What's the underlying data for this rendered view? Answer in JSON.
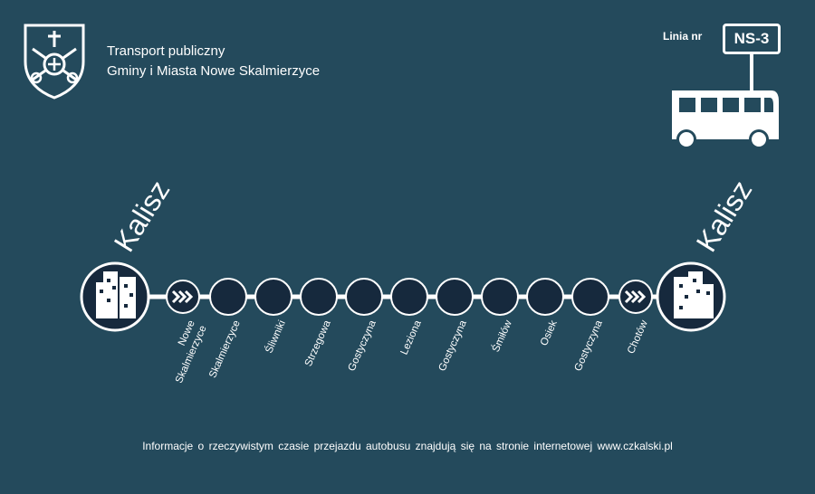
{
  "header": {
    "line1": "Transport publiczny",
    "line2": "Gminy i Miasta Nowe Skalmierzyce",
    "crest_icon": "coat-of-arms-icon"
  },
  "line": {
    "label": "Linia nr",
    "number": "NS-3",
    "bus_icon": "bus-icon"
  },
  "route": {
    "start_city": "Kalisz",
    "end_city": "Kalisz",
    "stops": [
      {
        "label": "Nowe\nSkalmierzyce",
        "type": "arrow"
      },
      {
        "label": "Skalmierzyce",
        "type": "stop"
      },
      {
        "label": "Śliwniki",
        "type": "stop"
      },
      {
        "label": "Strzegowa",
        "type": "stop"
      },
      {
        "label": "Gostyczyna",
        "type": "stop"
      },
      {
        "label": "Leziona",
        "type": "stop"
      },
      {
        "label": "Gostyczyna",
        "type": "stop"
      },
      {
        "label": "Śmiłów",
        "type": "stop"
      },
      {
        "label": "Osiek",
        "type": "stop"
      },
      {
        "label": "Gostyczyna",
        "type": "stop"
      },
      {
        "label": "Chotów",
        "type": "arrow"
      }
    ]
  },
  "footer": {
    "text": "Informacje o rzeczywistym czasie przejazdu autobusu znajdują się na stronie internetowej www.czkalski.pl"
  },
  "colors": {
    "background": "#244a5c",
    "stop_fill": "#16293d",
    "line": "#ffffff"
  }
}
